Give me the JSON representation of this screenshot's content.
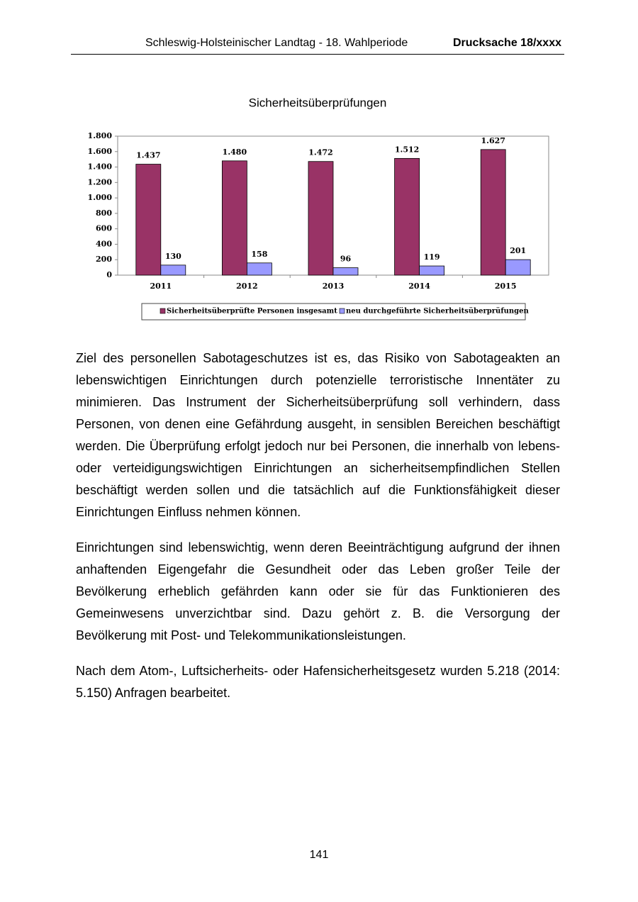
{
  "header": {
    "left": "Schleswig-Holsteinischer Landtag - 18. Wahlperiode",
    "right": "Drucksache 18/xxxx"
  },
  "chart_data": {
    "type": "bar",
    "title": "Sicherheitsüberprüfungen",
    "categories": [
      "2011",
      "2012",
      "2013",
      "2014",
      "2015"
    ],
    "series": [
      {
        "name": "Sicherheitsüberprüfte Personen insgesamt",
        "color": "#993366",
        "values": [
          1437,
          1480,
          1472,
          1512,
          1627
        ],
        "value_labels": [
          "1.437",
          "1.480",
          "1.472",
          "1.512",
          "1.627"
        ]
      },
      {
        "name": "neu durchgeführte Sicherheitsüberprüfungen",
        "color": "#9999ff",
        "values": [
          130,
          158,
          96,
          119,
          201
        ]
      }
    ],
    "ylim": [
      0,
      1800
    ],
    "yticks": [
      0,
      200,
      400,
      600,
      800,
      {
        "value": 1000,
        "label": "1.000"
      },
      {
        "value": 1200,
        "label": "1.200"
      },
      {
        "value": 1400,
        "label": "1.400"
      },
      {
        "value": 1600,
        "label": "1.600"
      },
      {
        "value": 1800,
        "label": "1.800"
      }
    ],
    "grid": false,
    "legend": "bottom"
  },
  "paragraphs": [
    "Ziel des personellen Sabotageschutzes ist es, das Risiko von Sabotageakten an lebenswichtigen Einrichtungen durch potenzielle terroristische Innentäter zu minimieren. Das Instrument der Sicherheitsüberprüfung soll verhindern, dass Personen, von denen eine Gefährdung ausgeht, in sensiblen Bereichen beschäftigt werden. Die Überprüfung erfolgt jedoch nur bei Personen, die innerhalb von lebens- oder verteidigungswichtigen Einrichtungen an sicherheitsempfindlichen Stellen beschäftigt werden sollen und die tatsächlich auf die Funktionsfähigkeit dieser Einrichtungen Einfluss nehmen können.",
    "Einrichtungen sind lebenswichtig, wenn deren Beeinträchtigung aufgrund der ihnen anhaftenden Eigengefahr die Gesundheit oder das Leben großer Teile der Bevölkerung erheblich gefährden kann oder sie für das Funktionieren des Gemeinwesens unverzichtbar sind. Dazu gehört z. B. die Versorgung der Bevölkerung mit Post- und Telekommunikationsleistungen.",
    "Nach dem Atom-, Luftsicherheits- oder Hafensicherheitsgesetz wurden 5.218 (2014: 5.150) Anfragen bearbeitet."
  ],
  "page_number": "141"
}
